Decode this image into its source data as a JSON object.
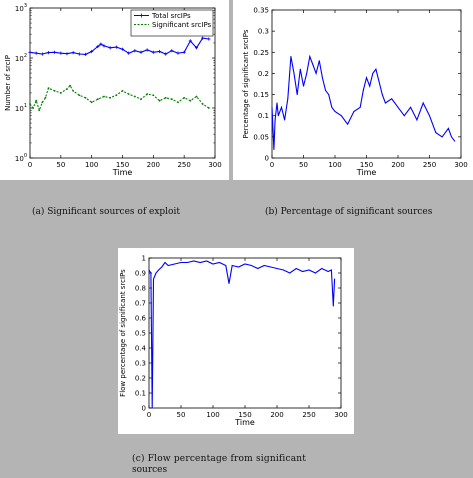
{
  "captions": {
    "a": "(a) Significant sources of exploit",
    "b": "(b) Percentage of significant sources",
    "c_line1": "(c)  Flow  percentage  from  significant",
    "c_line2": "sources"
  },
  "chart_data": [
    {
      "id": "a",
      "type": "line",
      "xlabel": "Time",
      "ylabel": "Number of srcIP",
      "xlim": [
        0,
        300
      ],
      "ylim": [
        1,
        1000
      ],
      "yscale": "log",
      "xticks": [
        0,
        50,
        100,
        150,
        200,
        250,
        300
      ],
      "yticks": [
        {
          "value": 1,
          "base": "10",
          "exp": "0"
        },
        {
          "value": 10,
          "base": "10",
          "exp": "1"
        },
        {
          "value": 100,
          "base": "10",
          "exp": "2"
        },
        {
          "value": 1000,
          "base": "10",
          "exp": "3"
        }
      ],
      "legend_position": "top-right",
      "series": [
        {
          "name": "Total srcIPs",
          "color": "#0000ff",
          "style": "solid-plus",
          "x": [
            0,
            10,
            20,
            30,
            40,
            50,
            60,
            70,
            80,
            90,
            100,
            110,
            115,
            120,
            130,
            140,
            150,
            160,
            170,
            180,
            190,
            200,
            210,
            220,
            230,
            240,
            250,
            260,
            270,
            280,
            290
          ],
          "y": [
            130,
            125,
            120,
            128,
            130,
            125,
            122,
            128,
            120,
            118,
            135,
            170,
            190,
            175,
            160,
            165,
            150,
            125,
            140,
            130,
            145,
            130,
            135,
            120,
            140,
            125,
            130,
            220,
            160,
            250,
            240
          ]
        },
        {
          "name": "Significant srcIPs",
          "color": "#007f00",
          "style": "dashed-dot",
          "x": [
            0,
            5,
            10,
            15,
            20,
            25,
            30,
            40,
            50,
            60,
            65,
            70,
            80,
            90,
            100,
            110,
            120,
            130,
            140,
            150,
            160,
            170,
            180,
            190,
            200,
            210,
            220,
            230,
            240,
            250,
            260,
            270,
            280,
            290
          ],
          "y": [
            12,
            10,
            14,
            9,
            13,
            16,
            25,
            22,
            20,
            24,
            28,
            22,
            18,
            16,
            13,
            15,
            17,
            16,
            18,
            22,
            19,
            17,
            15,
            19,
            18,
            14,
            16,
            15,
            13,
            16,
            14,
            17,
            12,
            10
          ]
        }
      ]
    },
    {
      "id": "b",
      "type": "line",
      "xlabel": "Time",
      "ylabel": "Percentage of significant srcIPs",
      "xlim": [
        0,
        300
      ],
      "ylim": [
        0,
        0.35
      ],
      "xticks": [
        0,
        50,
        100,
        150,
        200,
        250,
        300
      ],
      "yticks": [
        0,
        0.05,
        0.1,
        0.15,
        0.2,
        0.25,
        0.3,
        0.35
      ],
      "series": [
        {
          "color": "#0000ff",
          "x": [
            0,
            3,
            5,
            8,
            10,
            15,
            20,
            25,
            30,
            35,
            40,
            45,
            50,
            55,
            60,
            65,
            70,
            75,
            80,
            85,
            90,
            95,
            100,
            110,
            120,
            130,
            140,
            145,
            150,
            155,
            160,
            165,
            170,
            175,
            180,
            190,
            200,
            210,
            220,
            230,
            240,
            250,
            260,
            270,
            280,
            285,
            290
          ],
          "y": [
            0.12,
            0.02,
            0.09,
            0.13,
            0.1,
            0.12,
            0.09,
            0.14,
            0.24,
            0.2,
            0.15,
            0.21,
            0.17,
            0.2,
            0.24,
            0.22,
            0.2,
            0.23,
            0.19,
            0.16,
            0.15,
            0.12,
            0.11,
            0.1,
            0.08,
            0.11,
            0.12,
            0.16,
            0.19,
            0.17,
            0.2,
            0.21,
            0.18,
            0.15,
            0.13,
            0.14,
            0.12,
            0.1,
            0.12,
            0.09,
            0.13,
            0.1,
            0.06,
            0.05,
            0.07,
            0.05,
            0.04
          ]
        }
      ]
    },
    {
      "id": "c",
      "type": "line",
      "xlabel": "Time",
      "ylabel": "Flow percentage of significant srcIPs",
      "xlim": [
        0,
        300
      ],
      "ylim": [
        0,
        1
      ],
      "xticks": [
        0,
        50,
        100,
        150,
        200,
        250,
        300
      ],
      "yticks": [
        0,
        0.1,
        0.2,
        0.3,
        0.4,
        0.5,
        0.6,
        0.7,
        0.8,
        0.9,
        1
      ],
      "series": [
        {
          "color": "#0000ff",
          "x": [
            0,
            3,
            5,
            7,
            9,
            11,
            15,
            20,
            25,
            30,
            40,
            50,
            60,
            70,
            80,
            90,
            100,
            110,
            120,
            125,
            130,
            140,
            150,
            160,
            170,
            180,
            190,
            200,
            210,
            220,
            230,
            240,
            250,
            260,
            270,
            280,
            285,
            288,
            290
          ],
          "y": [
            0.92,
            0.9,
            0.0,
            0.86,
            0.88,
            0.9,
            0.92,
            0.94,
            0.97,
            0.95,
            0.96,
            0.97,
            0.97,
            0.98,
            0.97,
            0.98,
            0.96,
            0.97,
            0.95,
            0.83,
            0.95,
            0.94,
            0.96,
            0.95,
            0.93,
            0.95,
            0.94,
            0.93,
            0.92,
            0.9,
            0.93,
            0.91,
            0.92,
            0.9,
            0.93,
            0.91,
            0.92,
            0.68,
            0.86
          ]
        }
      ]
    }
  ]
}
